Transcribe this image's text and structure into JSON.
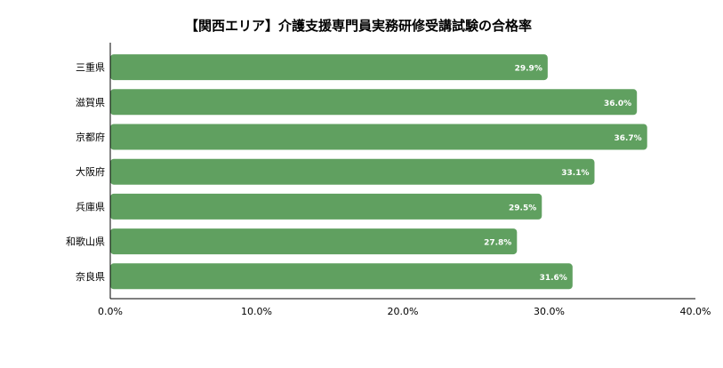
{
  "chart_data": {
    "type": "bar",
    "orientation": "horizontal",
    "title": "【関西エリア】介護支援専門員実務研修受講試験の合格率",
    "categories": [
      "三重県",
      "滋賀県",
      "京都府",
      "大阪府",
      "兵庫県",
      "和歌山県",
      "奈良県"
    ],
    "values": [
      29.9,
      36.0,
      36.7,
      33.1,
      29.5,
      27.8,
      31.6
    ],
    "value_labels": [
      "29.9%",
      "36.0%",
      "36.7%",
      "33.1%",
      "29.5%",
      "27.8%",
      "31.6%"
    ],
    "xlim": [
      0,
      40
    ],
    "x_ticks": [
      0,
      10,
      20,
      30,
      40
    ],
    "x_tick_labels": [
      "0.0%",
      "10.0%",
      "20.0%",
      "30.0%",
      "40.0%"
    ],
    "xlabel": "",
    "ylabel": "",
    "grid": false,
    "legend": "none",
    "bar_color": "#60a060",
    "axis_color": "#000000",
    "value_label_color": "#ffffff"
  }
}
